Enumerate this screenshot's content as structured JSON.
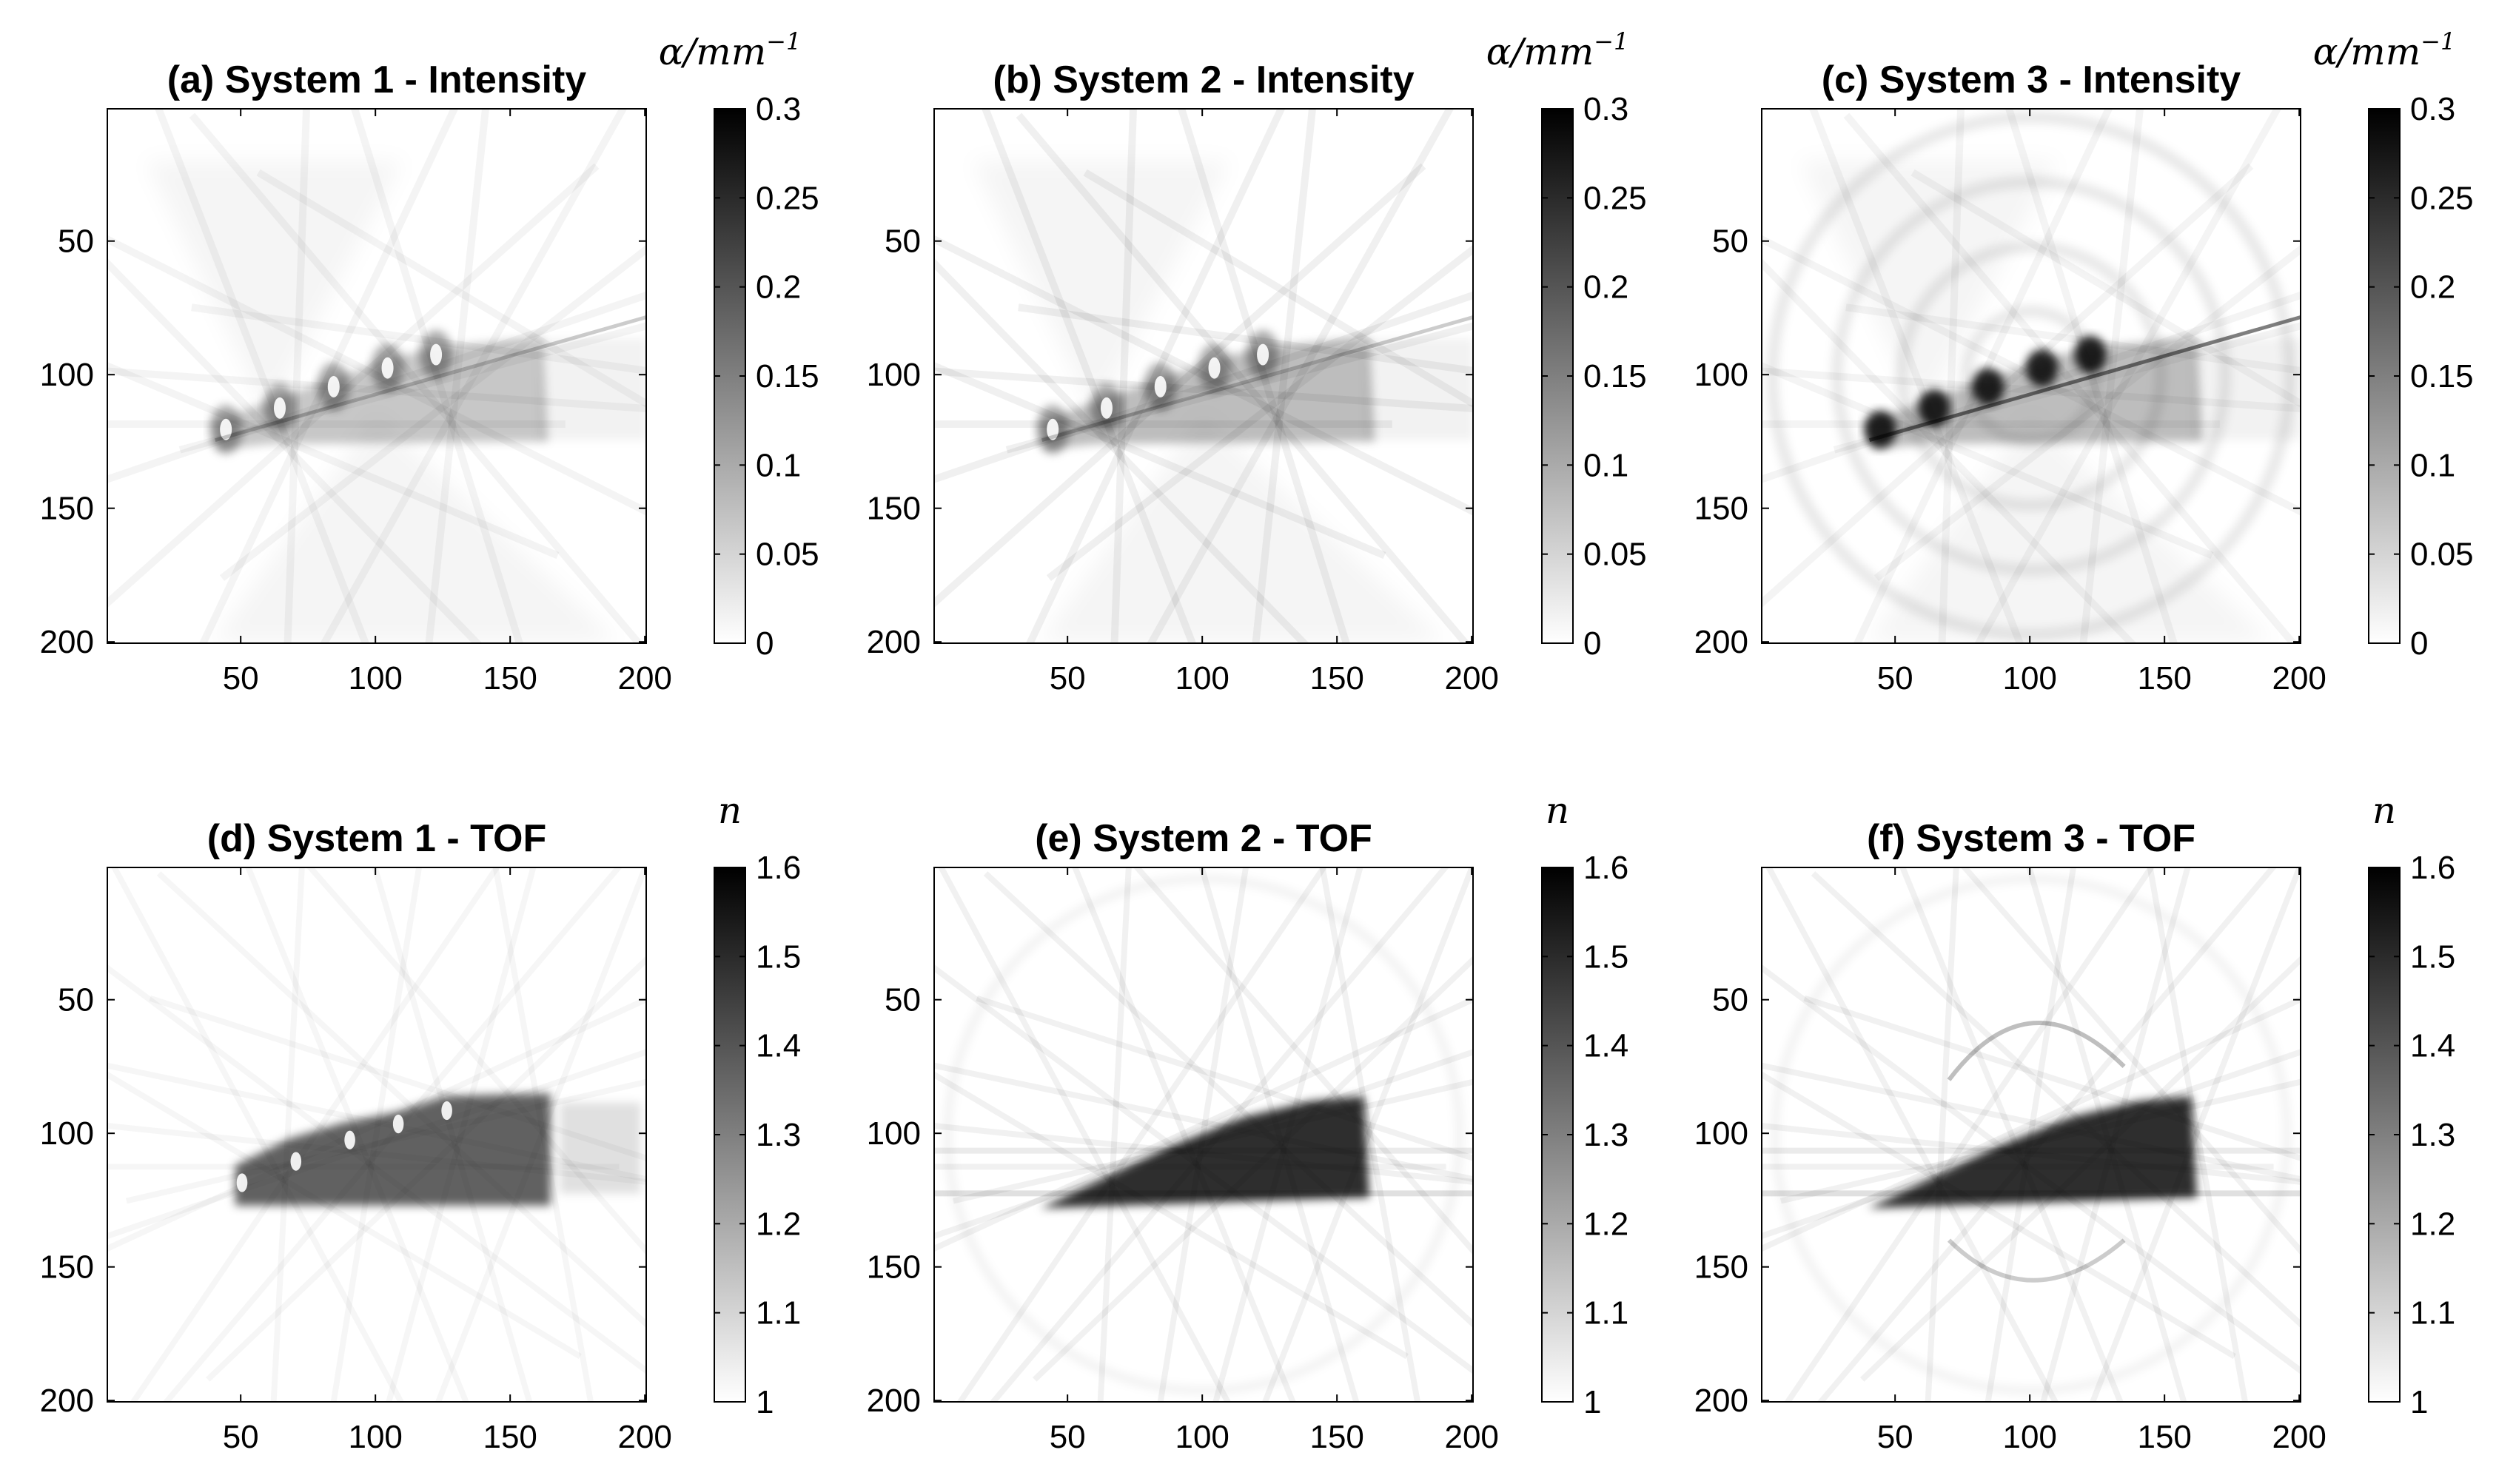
{
  "chart_data": [
    {
      "type": "heatmap",
      "title": "(a) System 1 - Intensity",
      "colorbar": {
        "label": "α/mm",
        "label_sup": "−1",
        "ticks": [
          "0",
          "0.05",
          "0.1",
          "0.15",
          "0.2",
          "0.25",
          "0.3"
        ],
        "range": [
          0,
          0.3
        ],
        "colormap": "white-to-black"
      },
      "x_ticks": [
        "50",
        "100",
        "150",
        "200"
      ],
      "y_ticks": [
        "50",
        "100",
        "150",
        "200"
      ],
      "xlim": [
        1,
        200
      ],
      "ylim": [
        1,
        200
      ],
      "y_reversed": true
    },
    {
      "type": "heatmap",
      "title": "(b) System 2 - Intensity",
      "colorbar": {
        "label": "α/mm",
        "label_sup": "−1",
        "ticks": [
          "0",
          "0.05",
          "0.1",
          "0.15",
          "0.2",
          "0.25",
          "0.3"
        ],
        "range": [
          0,
          0.3
        ],
        "colormap": "white-to-black"
      },
      "x_ticks": [
        "50",
        "100",
        "150",
        "200"
      ],
      "y_ticks": [
        "50",
        "100",
        "150",
        "200"
      ],
      "xlim": [
        1,
        200
      ],
      "ylim": [
        1,
        200
      ],
      "y_reversed": true
    },
    {
      "type": "heatmap",
      "title": "(c) System 3 - Intensity",
      "colorbar": {
        "label": "α/mm",
        "label_sup": "−1",
        "ticks": [
          "0",
          "0.05",
          "0.1",
          "0.15",
          "0.2",
          "0.25",
          "0.3"
        ],
        "range": [
          0,
          0.3
        ],
        "colormap": "white-to-black"
      },
      "x_ticks": [
        "50",
        "100",
        "150",
        "200"
      ],
      "y_ticks": [
        "50",
        "100",
        "150",
        "200"
      ],
      "xlim": [
        1,
        200
      ],
      "ylim": [
        1,
        200
      ],
      "y_reversed": true
    },
    {
      "type": "heatmap",
      "title": "(d) System 1 - TOF",
      "colorbar": {
        "label": "n",
        "label_sup": "",
        "ticks": [
          "1",
          "1.1",
          "1.2",
          "1.3",
          "1.4",
          "1.5",
          "1.6"
        ],
        "range": [
          1,
          1.6
        ],
        "colormap": "white-to-black"
      },
      "x_ticks": [
        "50",
        "100",
        "150",
        "200"
      ],
      "y_ticks": [
        "50",
        "100",
        "150",
        "200"
      ],
      "xlim": [
        1,
        200
      ],
      "ylim": [
        1,
        200
      ],
      "y_reversed": true
    },
    {
      "type": "heatmap",
      "title": "(e) System 2 - TOF",
      "colorbar": {
        "label": "n",
        "label_sup": "",
        "ticks": [
          "1",
          "1.1",
          "1.2",
          "1.3",
          "1.4",
          "1.5",
          "1.6"
        ],
        "range": [
          1,
          1.6
        ],
        "colormap": "white-to-black"
      },
      "x_ticks": [
        "50",
        "100",
        "150",
        "200"
      ],
      "y_ticks": [
        "50",
        "100",
        "150",
        "200"
      ],
      "xlim": [
        1,
        200
      ],
      "ylim": [
        1,
        200
      ],
      "y_reversed": true
    },
    {
      "type": "heatmap",
      "title": "(f) System 3 - TOF",
      "colorbar": {
        "label": "n",
        "label_sup": "",
        "ticks": [
          "1",
          "1.1",
          "1.2",
          "1.3",
          "1.4",
          "1.5",
          "1.6"
        ],
        "range": [
          1,
          1.6
        ],
        "colormap": "white-to-black"
      },
      "x_ticks": [
        "50",
        "100",
        "150",
        "200"
      ],
      "y_ticks": [
        "50",
        "100",
        "150",
        "200"
      ],
      "xlim": [
        1,
        200
      ],
      "ylim": [
        1,
        200
      ],
      "y_reversed": true
    }
  ]
}
